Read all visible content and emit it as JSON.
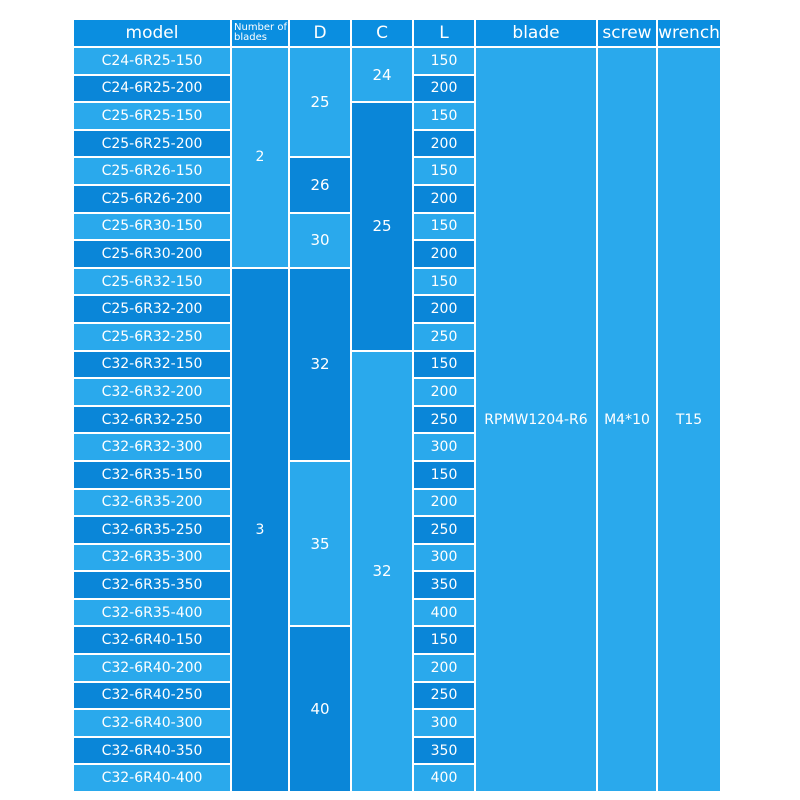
{
  "headers": {
    "model": "model",
    "blades": "Number of blades",
    "d": "D",
    "c": "C",
    "l": "L",
    "blade": "blade",
    "screw": "screw",
    "wrench": "wrench"
  },
  "rows": [
    {
      "model": "C24-6R25-150",
      "l": "150"
    },
    {
      "model": "C24-6R25-200",
      "l": "200"
    },
    {
      "model": "C25-6R25-150",
      "l": "150"
    },
    {
      "model": "C25-6R25-200",
      "l": "200"
    },
    {
      "model": "C25-6R26-150",
      "l": "150"
    },
    {
      "model": "C25-6R26-200",
      "l": "200"
    },
    {
      "model": "C25-6R30-150",
      "l": "150"
    },
    {
      "model": "C25-6R30-200",
      "l": "200"
    },
    {
      "model": "C25-6R32-150",
      "l": "150"
    },
    {
      "model": "C25-6R32-200",
      "l": "200"
    },
    {
      "model": "C25-6R32-250",
      "l": "250"
    },
    {
      "model": "C32-6R32-150",
      "l": "150"
    },
    {
      "model": "C32-6R32-200",
      "l": "200"
    },
    {
      "model": "C32-6R32-250",
      "l": "250"
    },
    {
      "model": "C32-6R32-300",
      "l": "300"
    },
    {
      "model": "C32-6R35-150",
      "l": "150"
    },
    {
      "model": "C32-6R35-200",
      "l": "200"
    },
    {
      "model": "C32-6R35-250",
      "l": "250"
    },
    {
      "model": "C32-6R35-300",
      "l": "300"
    },
    {
      "model": "C32-6R35-350",
      "l": "350"
    },
    {
      "model": "C32-6R35-400",
      "l": "400"
    },
    {
      "model": "C32-6R40-150",
      "l": "150"
    },
    {
      "model": "C32-6R40-200",
      "l": "200"
    },
    {
      "model": "C32-6R40-250",
      "l": "250"
    },
    {
      "model": "C32-6R40-300",
      "l": "300"
    },
    {
      "model": "C32-6R40-350",
      "l": "350"
    },
    {
      "model": "C32-6R40-400",
      "l": "400"
    }
  ],
  "blades_groups": [
    {
      "value": "2",
      "rows": 8
    },
    {
      "value": "3",
      "rows": 19
    }
  ],
  "d_groups": [
    {
      "value": "25",
      "rows": 4
    },
    {
      "value": "26",
      "rows": 2
    },
    {
      "value": "30",
      "rows": 2
    },
    {
      "value": "32",
      "rows": 7
    },
    {
      "value": "35",
      "rows": 6
    },
    {
      "value": "40",
      "rows": 6
    }
  ],
  "c_groups": [
    {
      "value": "24",
      "rows": 2
    },
    {
      "value": "25",
      "rows": 9
    },
    {
      "value": "32",
      "rows": 16
    }
  ],
  "blade": "RPMW1204-R6",
  "screw": "M4*10",
  "wrench": "T15",
  "colors": {
    "light": "#2aa9ec",
    "dark": "#0a86d8",
    "header": "#0a8ee0"
  }
}
